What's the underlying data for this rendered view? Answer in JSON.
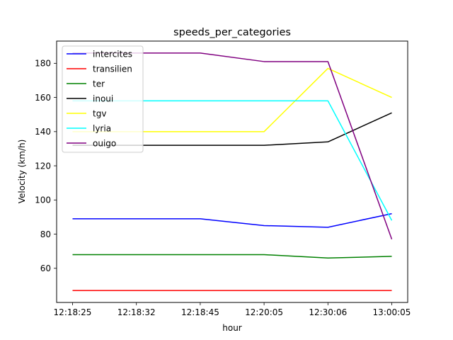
{
  "chart_data": {
    "type": "line",
    "title": "speeds_per_categories",
    "xlabel": "hour",
    "ylabel": "Velocity (km/h)",
    "categories": [
      "12:18:25",
      "12:18:32",
      "12:18:45",
      "12:20:05",
      "12:30:06",
      "13:00:05"
    ],
    "ylim": [
      40,
      193
    ],
    "yticks": [
      60,
      80,
      100,
      120,
      140,
      160,
      180
    ],
    "grid": false,
    "legend_position": "top-left",
    "series": [
      {
        "name": "intercites",
        "color": "#0000ff",
        "values": [
          89,
          89,
          89,
          85,
          84,
          92
        ]
      },
      {
        "name": "transilien",
        "color": "#ff0000",
        "values": [
          47,
          47,
          47,
          47,
          47,
          47
        ]
      },
      {
        "name": "ter",
        "color": "#008000",
        "values": [
          68,
          68,
          68,
          68,
          66,
          67
        ]
      },
      {
        "name": "inoui",
        "color": "#000000",
        "values": [
          132,
          132,
          132,
          132,
          134,
          151
        ]
      },
      {
        "name": "tgv",
        "color": "#ffff00",
        "values": [
          140,
          140,
          140,
          140,
          177,
          160
        ]
      },
      {
        "name": "lyria",
        "color": "#00ffff",
        "values": [
          158,
          158,
          158,
          158,
          158,
          88
        ]
      },
      {
        "name": "ouigo",
        "color": "#800080",
        "values": [
          186,
          186,
          186,
          181,
          181,
          77
        ]
      }
    ]
  }
}
